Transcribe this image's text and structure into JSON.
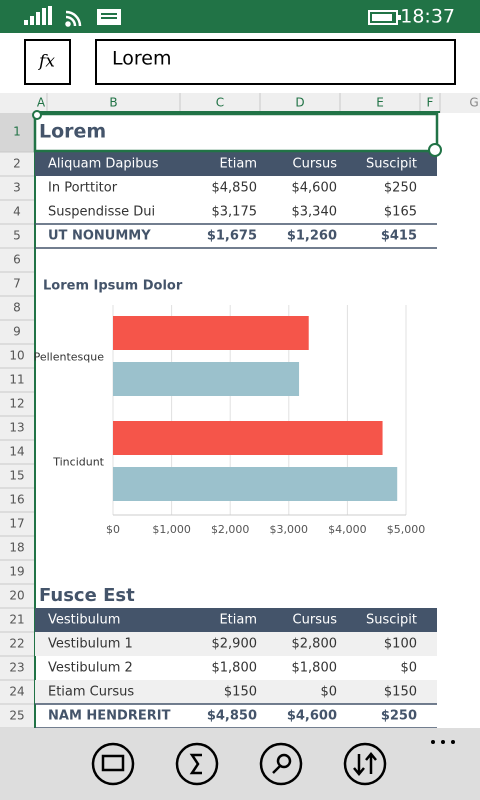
{
  "status_bar": {
    "time": "18:37"
  },
  "formula_bar": {
    "function_label": "fx",
    "value": "Lorem"
  },
  "column_headers": [
    "A",
    "B",
    "C",
    "D",
    "E",
    "F",
    "G"
  ],
  "row_headers": [
    1,
    2,
    3,
    4,
    5,
    6,
    7,
    8,
    9,
    10,
    11,
    12,
    13,
    14,
    15,
    16,
    17,
    18,
    19,
    20,
    21,
    22,
    23,
    24,
    25
  ],
  "table1": {
    "title": "Lorem",
    "header": [
      "Aliquam Dapibus",
      "Etiam",
      "Cursus",
      "Suscipit"
    ],
    "rows": [
      [
        "In Porttitor",
        "$4,850",
        "$4,600",
        "$250"
      ],
      [
        "Suspendisse Dui",
        "$3,175",
        "$3,340",
        "$165"
      ]
    ],
    "total": [
      "UT NONUMMY",
      "$1,675",
      "$1,260",
      "$415"
    ]
  },
  "chart_data": {
    "type": "bar",
    "orientation": "horizontal",
    "title": "Lorem Ipsum Dolor",
    "categories": [
      "Pellentesque",
      "Tincidunt"
    ],
    "series": [
      {
        "color": "#f5554a",
        "values": [
          3340,
          4600
        ]
      },
      {
        "color": "#9bc1cc",
        "values": [
          3175,
          4850
        ]
      }
    ],
    "xlim": [
      0,
      5000
    ],
    "xticks": [
      {
        "value": 0,
        "label": "$0"
      },
      {
        "value": 1000,
        "label": "$1,000"
      },
      {
        "value": 2000,
        "label": "$2,000"
      },
      {
        "value": 3000,
        "label": "$3,000"
      },
      {
        "value": 4000,
        "label": "$4,000"
      },
      {
        "value": 5000,
        "label": "$5,000"
      }
    ],
    "grid": true
  },
  "table2": {
    "title": "Fusce Est",
    "header": [
      "Vestibulum",
      "Etiam",
      "Cursus",
      "Suscipit"
    ],
    "rows": [
      [
        "Vestibulum 1",
        "$2,900",
        "$2,800",
        "$100"
      ],
      [
        "Vestibulum 2",
        "$1,800",
        "$1,800",
        "$0"
      ],
      [
        "Etiam Cursus",
        "$150",
        "$0",
        "$150"
      ]
    ],
    "total": [
      "NAM HENDRERIT",
      "$4,850",
      "$4,600",
      "$250"
    ]
  }
}
